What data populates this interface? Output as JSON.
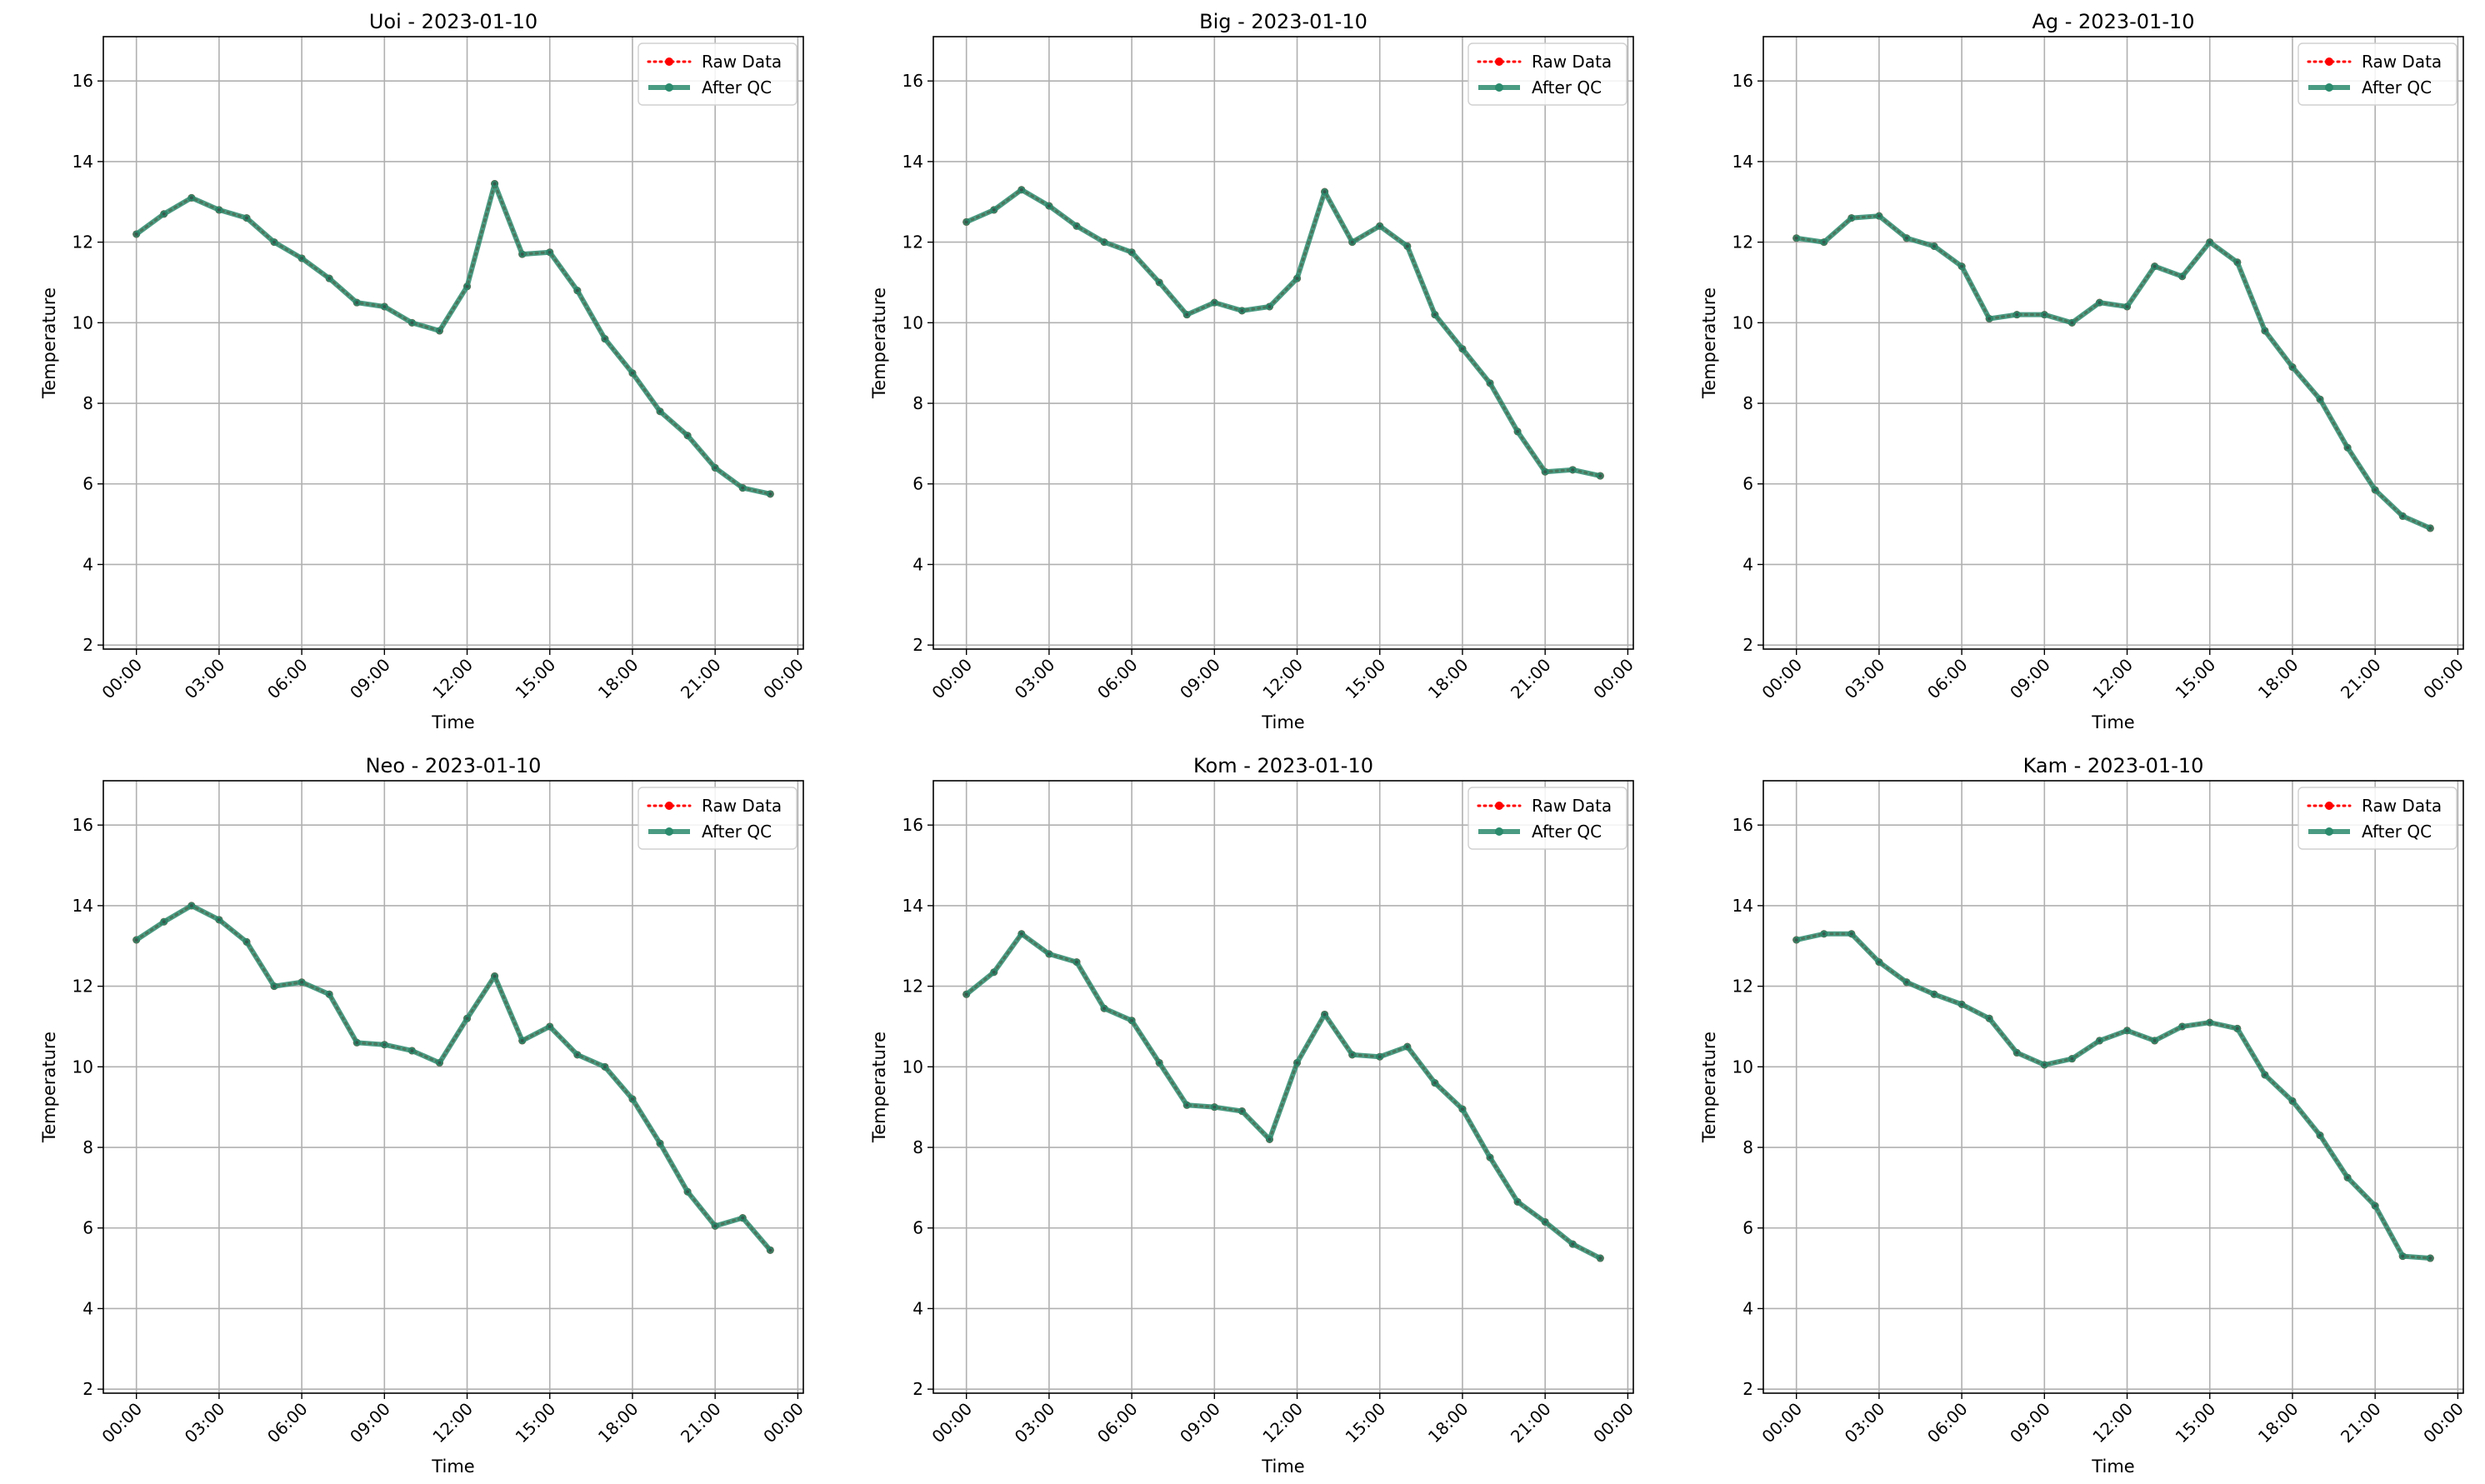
{
  "figure": {
    "background": "#ffffff",
    "raw_color": "#ff0000",
    "qc_color": "#2a8a6c",
    "grid_color": "#b0b0b0"
  },
  "chart_data": [
    {
      "type": "line",
      "title": "Uoi - 2023-01-10",
      "xlabel": "Time",
      "ylabel": "Temperature",
      "x": [
        "00:00",
        "01:00",
        "02:00",
        "03:00",
        "04:00",
        "05:00",
        "06:00",
        "07:00",
        "08:00",
        "09:00",
        "10:00",
        "11:00",
        "12:00",
        "13:00",
        "14:00",
        "15:00",
        "16:00",
        "17:00",
        "18:00",
        "19:00",
        "20:00",
        "21:00",
        "22:00",
        "23:00"
      ],
      "xticks": [
        "00:00",
        "03:00",
        "06:00",
        "09:00",
        "12:00",
        "15:00",
        "18:00",
        "21:00",
        "00:00"
      ],
      "yticks": [
        2,
        4,
        6,
        8,
        10,
        12,
        14,
        16
      ],
      "xlim": [
        -1.2,
        24.2
      ],
      "ylim": [
        1.9,
        17.1
      ],
      "grid": true,
      "legend_position": "top-right",
      "series": [
        {
          "name": "Raw Data",
          "style": "dotted-red-markers",
          "values": [
            12.2,
            12.7,
            13.1,
            12.8,
            12.6,
            12.0,
            11.6,
            11.1,
            10.5,
            10.4,
            10.0,
            9.8,
            10.9,
            13.45,
            11.7,
            11.75,
            10.8,
            9.6,
            8.75,
            7.8,
            7.2,
            6.4,
            5.9,
            5.75
          ]
        },
        {
          "name": "After QC",
          "style": "solid-green-markers",
          "values": [
            12.2,
            12.7,
            13.1,
            12.8,
            12.6,
            12.0,
            11.6,
            11.1,
            10.5,
            10.4,
            10.0,
            9.8,
            10.9,
            13.45,
            11.7,
            11.75,
            10.8,
            9.6,
            8.75,
            7.8,
            7.2,
            6.4,
            5.9,
            5.75
          ]
        }
      ]
    },
    {
      "type": "line",
      "title": "Big - 2023-01-10",
      "xlabel": "Time",
      "ylabel": "Temperature",
      "x": [
        "00:00",
        "01:00",
        "02:00",
        "03:00",
        "04:00",
        "05:00",
        "06:00",
        "07:00",
        "08:00",
        "09:00",
        "10:00",
        "11:00",
        "12:00",
        "13:00",
        "14:00",
        "15:00",
        "16:00",
        "17:00",
        "18:00",
        "19:00",
        "20:00",
        "21:00",
        "22:00",
        "23:00"
      ],
      "xticks": [
        "00:00",
        "03:00",
        "06:00",
        "09:00",
        "12:00",
        "15:00",
        "18:00",
        "21:00",
        "00:00"
      ],
      "yticks": [
        2,
        4,
        6,
        8,
        10,
        12,
        14,
        16
      ],
      "xlim": [
        -1.2,
        24.2
      ],
      "ylim": [
        1.9,
        17.1
      ],
      "grid": true,
      "legend_position": "top-right",
      "series": [
        {
          "name": "Raw Data",
          "style": "dotted-red-markers",
          "values": [
            12.5,
            12.8,
            13.3,
            12.9,
            12.4,
            12.0,
            11.75,
            11.0,
            10.2,
            10.5,
            10.3,
            10.4,
            11.1,
            13.25,
            12.0,
            12.4,
            11.9,
            10.2,
            9.35,
            8.5,
            7.3,
            6.3,
            6.35,
            6.2
          ]
        },
        {
          "name": "After QC",
          "style": "solid-green-markers",
          "values": [
            12.5,
            12.8,
            13.3,
            12.9,
            12.4,
            12.0,
            11.75,
            11.0,
            10.2,
            10.5,
            10.3,
            10.4,
            11.1,
            13.25,
            12.0,
            12.4,
            11.9,
            10.2,
            9.35,
            8.5,
            7.3,
            6.3,
            6.35,
            6.2
          ]
        }
      ]
    },
    {
      "type": "line",
      "title": "Ag - 2023-01-10",
      "xlabel": "Time",
      "ylabel": "Temperature",
      "x": [
        "00:00",
        "01:00",
        "02:00",
        "03:00",
        "04:00",
        "05:00",
        "06:00",
        "07:00",
        "08:00",
        "09:00",
        "10:00",
        "11:00",
        "12:00",
        "13:00",
        "14:00",
        "15:00",
        "16:00",
        "17:00",
        "18:00",
        "19:00",
        "20:00",
        "21:00",
        "22:00",
        "23:00"
      ],
      "xticks": [
        "00:00",
        "03:00",
        "06:00",
        "09:00",
        "12:00",
        "15:00",
        "18:00",
        "21:00",
        "00:00"
      ],
      "yticks": [
        2,
        4,
        6,
        8,
        10,
        12,
        14,
        16
      ],
      "xlim": [
        -1.2,
        24.2
      ],
      "ylim": [
        1.9,
        17.1
      ],
      "grid": true,
      "legend_position": "top-right",
      "series": [
        {
          "name": "Raw Data",
          "style": "dotted-red-markers",
          "values": [
            12.1,
            12.0,
            12.6,
            12.65,
            12.1,
            11.9,
            11.4,
            10.1,
            10.2,
            10.2,
            10.0,
            10.5,
            10.4,
            11.4,
            11.15,
            12.0,
            11.5,
            9.8,
            8.9,
            8.1,
            6.9,
            5.85,
            5.2,
            4.9
          ]
        },
        {
          "name": "After QC",
          "style": "solid-green-markers",
          "values": [
            12.1,
            12.0,
            12.6,
            12.65,
            12.1,
            11.9,
            11.4,
            10.1,
            10.2,
            10.2,
            10.0,
            10.5,
            10.4,
            11.4,
            11.15,
            12.0,
            11.5,
            9.8,
            8.9,
            8.1,
            6.9,
            5.85,
            5.2,
            4.9
          ]
        }
      ]
    },
    {
      "type": "line",
      "title": "Neo - 2023-01-10",
      "xlabel": "Time",
      "ylabel": "Temperature",
      "x": [
        "00:00",
        "01:00",
        "02:00",
        "03:00",
        "04:00",
        "05:00",
        "06:00",
        "07:00",
        "08:00",
        "09:00",
        "10:00",
        "11:00",
        "12:00",
        "13:00",
        "14:00",
        "15:00",
        "16:00",
        "17:00",
        "18:00",
        "19:00",
        "20:00",
        "21:00",
        "22:00",
        "23:00"
      ],
      "xticks": [
        "00:00",
        "03:00",
        "06:00",
        "09:00",
        "12:00",
        "15:00",
        "18:00",
        "21:00",
        "00:00"
      ],
      "yticks": [
        2,
        4,
        6,
        8,
        10,
        12,
        14,
        16
      ],
      "xlim": [
        -1.2,
        24.2
      ],
      "ylim": [
        1.9,
        17.1
      ],
      "grid": true,
      "legend_position": "top-right",
      "series": [
        {
          "name": "Raw Data",
          "style": "dotted-red-markers",
          "values": [
            13.15,
            13.6,
            14.0,
            13.65,
            13.1,
            12.0,
            12.1,
            11.8,
            10.6,
            10.55,
            10.4,
            10.1,
            11.2,
            12.25,
            10.65,
            11.0,
            10.3,
            10.0,
            9.2,
            8.1,
            6.9,
            6.05,
            6.25,
            5.45
          ]
        },
        {
          "name": "After QC",
          "style": "solid-green-markers",
          "values": [
            13.15,
            13.6,
            14.0,
            13.65,
            13.1,
            12.0,
            12.1,
            11.8,
            10.6,
            10.55,
            10.4,
            10.1,
            11.2,
            12.25,
            10.65,
            11.0,
            10.3,
            10.0,
            9.2,
            8.1,
            6.9,
            6.05,
            6.25,
            5.45
          ]
        }
      ]
    },
    {
      "type": "line",
      "title": "Kom - 2023-01-10",
      "xlabel": "Time",
      "ylabel": "Temperature",
      "x": [
        "00:00",
        "01:00",
        "02:00",
        "03:00",
        "04:00",
        "05:00",
        "06:00",
        "07:00",
        "08:00",
        "09:00",
        "10:00",
        "11:00",
        "12:00",
        "13:00",
        "14:00",
        "15:00",
        "16:00",
        "17:00",
        "18:00",
        "19:00",
        "20:00",
        "21:00",
        "22:00",
        "23:00"
      ],
      "xticks": [
        "00:00",
        "03:00",
        "06:00",
        "09:00",
        "12:00",
        "15:00",
        "18:00",
        "21:00",
        "00:00"
      ],
      "yticks": [
        2,
        4,
        6,
        8,
        10,
        12,
        14,
        16
      ],
      "xlim": [
        -1.2,
        24.2
      ],
      "ylim": [
        1.9,
        17.1
      ],
      "grid": true,
      "legend_position": "top-right",
      "series": [
        {
          "name": "Raw Data",
          "style": "dotted-red-markers",
          "values": [
            11.8,
            12.35,
            13.3,
            12.8,
            12.6,
            11.45,
            11.15,
            10.1,
            9.05,
            9.0,
            8.9,
            8.2,
            10.1,
            11.3,
            10.3,
            10.25,
            10.5,
            9.6,
            8.95,
            7.75,
            6.65,
            6.15,
            5.6,
            5.25
          ]
        },
        {
          "name": "After QC",
          "style": "solid-green-markers",
          "values": [
            11.8,
            12.35,
            13.3,
            12.8,
            12.6,
            11.45,
            11.15,
            10.1,
            9.05,
            9.0,
            8.9,
            8.2,
            10.1,
            11.3,
            10.3,
            10.25,
            10.5,
            9.6,
            8.95,
            7.75,
            6.65,
            6.15,
            5.6,
            5.25
          ]
        }
      ]
    },
    {
      "type": "line",
      "title": "Kam - 2023-01-10",
      "xlabel": "Time",
      "ylabel": "Temperature",
      "x": [
        "00:00",
        "01:00",
        "02:00",
        "03:00",
        "04:00",
        "05:00",
        "06:00",
        "07:00",
        "08:00",
        "09:00",
        "10:00",
        "11:00",
        "12:00",
        "13:00",
        "14:00",
        "15:00",
        "16:00",
        "17:00",
        "18:00",
        "19:00",
        "20:00",
        "21:00",
        "22:00",
        "23:00"
      ],
      "xticks": [
        "00:00",
        "03:00",
        "06:00",
        "09:00",
        "12:00",
        "15:00",
        "18:00",
        "21:00",
        "00:00"
      ],
      "yticks": [
        2,
        4,
        6,
        8,
        10,
        12,
        14,
        16
      ],
      "xlim": [
        -1.2,
        24.2
      ],
      "ylim": [
        1.9,
        17.1
      ],
      "grid": true,
      "legend_position": "top-right",
      "series": [
        {
          "name": "Raw Data",
          "style": "dotted-red-markers",
          "values": [
            13.15,
            13.3,
            13.3,
            12.6,
            12.1,
            11.8,
            11.55,
            11.2,
            10.35,
            10.05,
            10.2,
            10.65,
            10.9,
            10.65,
            11.0,
            11.1,
            10.95,
            9.8,
            9.15,
            8.3,
            7.25,
            6.55,
            5.3,
            5.25
          ]
        },
        {
          "name": "After QC",
          "style": "solid-green-markers",
          "values": [
            13.15,
            13.3,
            13.3,
            12.6,
            12.1,
            11.8,
            11.55,
            11.2,
            10.35,
            10.05,
            10.2,
            10.65,
            10.9,
            10.65,
            11.0,
            11.1,
            10.95,
            9.8,
            9.15,
            8.3,
            7.25,
            6.55,
            5.3,
            5.25
          ]
        }
      ]
    }
  ]
}
